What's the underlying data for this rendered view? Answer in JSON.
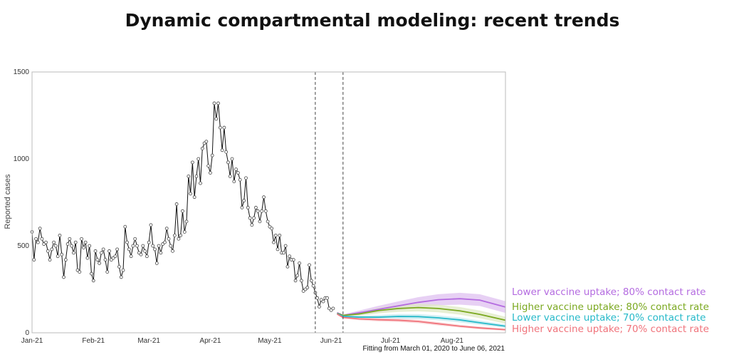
{
  "chart_data": {
    "type": "line",
    "title": "Dynamic compartmental modeling: recent trends",
    "ylabel": "Reported cases",
    "xlabel": "",
    "caption": "Fitting from March 01, 2020 to June 06, 2021",
    "x_domain": [
      "2021-01-01",
      "2021-08-28"
    ],
    "ylim": [
      0,
      1500
    ],
    "y_ticks": [
      0,
      500,
      1000,
      1500
    ],
    "x_ticks": [
      {
        "date": "2021-01-01",
        "label": "Jan-21"
      },
      {
        "date": "2021-02-01",
        "label": "Feb-21"
      },
      {
        "date": "2021-03-01",
        "label": "Mar-21"
      },
      {
        "date": "2021-04-01",
        "label": "Apr-21"
      },
      {
        "date": "2021-05-01",
        "label": "May-21"
      },
      {
        "date": "2021-06-01",
        "label": "Jun-21"
      },
      {
        "date": "2021-07-01",
        "label": "Jul-21"
      },
      {
        "date": "2021-08-01",
        "label": "Aug-21"
      }
    ],
    "vlines": [
      "2021-05-24",
      "2021-06-07"
    ],
    "grid": false,
    "legend_placement": "right",
    "observed": {
      "start_date": "2021-01-01",
      "color": "#111111",
      "values": [
        580,
        420,
        540,
        520,
        600,
        540,
        510,
        520,
        470,
        420,
        480,
        520,
        500,
        440,
        560,
        450,
        320,
        420,
        510,
        540,
        500,
        460,
        520,
        360,
        350,
        540,
        490,
        520,
        430,
        500,
        340,
        300,
        470,
        420,
        400,
        460,
        480,
        420,
        350,
        470,
        420,
        430,
        440,
        480,
        380,
        320,
        360,
        610,
        520,
        480,
        440,
        500,
        540,
        500,
        460,
        450,
        500,
        470,
        440,
        520,
        620,
        500,
        480,
        400,
        500,
        460,
        510,
        520,
        600,
        540,
        500,
        470,
        560,
        740,
        540,
        560,
        700,
        580,
        640,
        900,
        800,
        980,
        780,
        900,
        1000,
        860,
        1060,
        1090,
        1100,
        960,
        920,
        1020,
        1320,
        1230,
        1320,
        1180,
        1050,
        1180,
        1040,
        980,
        900,
        1000,
        870,
        940,
        920,
        880,
        720,
        760,
        890,
        720,
        660,
        620,
        660,
        720,
        700,
        640,
        700,
        780,
        700,
        640,
        610,
        600,
        520,
        560,
        480,
        560,
        460,
        460,
        500,
        380,
        440,
        420,
        420,
        300,
        330,
        400,
        300,
        240,
        250,
        260,
        390,
        300,
        270,
        230,
        200,
        150,
        190,
        180,
        200,
        200,
        140,
        130,
        140
      ]
    },
    "scenarios": [
      {
        "name": "Lower vaccine uptake; 80% contact rate",
        "color": "#b46be0",
        "band": "#dfc0f0",
        "points": [
          [
            "2021-06-04",
            115
          ],
          [
            "2021-06-07",
            100
          ],
          [
            "2021-06-15",
            115
          ],
          [
            "2021-06-25",
            135
          ],
          [
            "2021-07-05",
            155
          ],
          [
            "2021-07-15",
            175
          ],
          [
            "2021-07-25",
            190
          ],
          [
            "2021-08-05",
            196
          ],
          [
            "2021-08-15",
            188
          ],
          [
            "2021-08-28",
            148
          ]
        ],
        "band_width": [
          5,
          6,
          12,
          20,
          26,
          30,
          32,
          34,
          34,
          34
        ]
      },
      {
        "name": "Higher vaccine uptake; 80% contact rate",
        "color": "#7aa81f",
        "band": "#dfeac4",
        "points": [
          [
            "2021-06-04",
            112
          ],
          [
            "2021-06-07",
            100
          ],
          [
            "2021-06-15",
            108
          ],
          [
            "2021-06-25",
            128
          ],
          [
            "2021-07-05",
            140
          ],
          [
            "2021-07-15",
            145
          ],
          [
            "2021-07-25",
            140
          ],
          [
            "2021-08-05",
            126
          ],
          [
            "2021-08-15",
            106
          ],
          [
            "2021-08-28",
            72
          ]
        ],
        "band_width": [
          5,
          6,
          10,
          16,
          20,
          22,
          22,
          22,
          22,
          20
        ]
      },
      {
        "name": "Lower vaccine uptake; 70% contact rate",
        "color": "#26b9c9",
        "band": "#c3eaef",
        "points": [
          [
            "2021-06-04",
            110
          ],
          [
            "2021-06-07",
            95
          ],
          [
            "2021-06-15",
            90
          ],
          [
            "2021-06-25",
            90
          ],
          [
            "2021-07-05",
            94
          ],
          [
            "2021-07-15",
            93
          ],
          [
            "2021-07-25",
            86
          ],
          [
            "2021-08-05",
            74
          ],
          [
            "2021-08-15",
            58
          ],
          [
            "2021-08-28",
            38
          ]
        ],
        "band_width": [
          5,
          6,
          8,
          12,
          14,
          14,
          14,
          14,
          12,
          10
        ]
      },
      {
        "name": "Higher vaccine uptake; 70% contact rate",
        "color": "#f0737b",
        "band": "#f9d1d3",
        "points": [
          [
            "2021-06-04",
            108
          ],
          [
            "2021-06-07",
            88
          ],
          [
            "2021-06-15",
            80
          ],
          [
            "2021-06-25",
            75
          ],
          [
            "2021-07-05",
            72
          ],
          [
            "2021-07-15",
            65
          ],
          [
            "2021-07-25",
            52
          ],
          [
            "2021-08-05",
            38
          ],
          [
            "2021-08-15",
            28
          ],
          [
            "2021-08-28",
            18
          ]
        ],
        "band_width": [
          5,
          6,
          8,
          10,
          10,
          10,
          10,
          8,
          8,
          6
        ]
      }
    ]
  }
}
